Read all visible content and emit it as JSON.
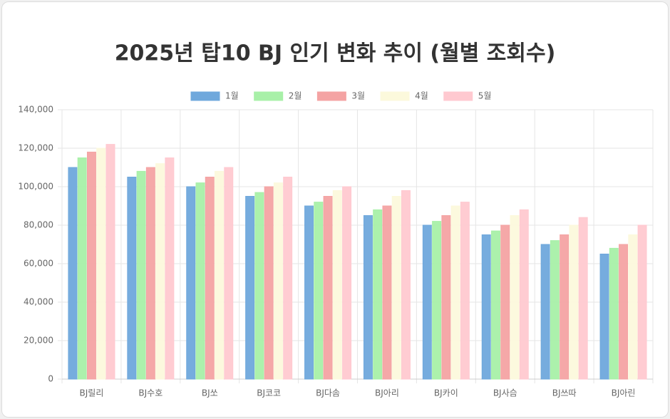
{
  "chart_data": {
    "type": "bar",
    "title": "2025년 탑10 BJ 인기 변화 추이 (월별 조회수)",
    "categories": [
      "BJ릴리",
      "BJ수호",
      "BJ쏘",
      "BJ코코",
      "BJ다솜",
      "BJ아리",
      "BJ카이",
      "BJ사슴",
      "BJ쓰따",
      "BJ아린"
    ],
    "series": [
      {
        "name": "1월",
        "color": "#6fa8dc",
        "values": [
          110000,
          105000,
          100000,
          95000,
          90000,
          85000,
          80000,
          75000,
          70000,
          65000
        ]
      },
      {
        "name": "2월",
        "color": "#a8f0a8",
        "values": [
          115000,
          108000,
          102000,
          97000,
          92000,
          88000,
          82000,
          77000,
          72000,
          68000
        ]
      },
      {
        "name": "3월",
        "color": "#f4a3a3",
        "values": [
          118000,
          110000,
          105000,
          100000,
          95000,
          90000,
          85000,
          80000,
          75000,
          70000
        ]
      },
      {
        "name": "4월",
        "color": "#fcf9dc",
        "values": [
          120000,
          112000,
          108000,
          102000,
          98000,
          95000,
          90000,
          85000,
          80000,
          75000
        ]
      },
      {
        "name": "5월",
        "color": "#ffc9d0",
        "values": [
          122000,
          115000,
          110000,
          105000,
          100000,
          98000,
          92000,
          88000,
          84000,
          80000
        ]
      }
    ],
    "ylim": [
      0,
      140000
    ],
    "yticks": [
      0,
      {
        "value": 20000,
        "label": "20,000"
      },
      {
        "value": 40000,
        "label": "40,000"
      },
      {
        "value": 60000,
        "label": "60,000"
      },
      {
        "value": 80000,
        "label": "80,000"
      },
      {
        "value": 100000,
        "label": "100,000"
      },
      {
        "value": 120000,
        "label": "120,000"
      },
      {
        "value": 140000,
        "label": "140,000"
      }
    ],
    "grid": true
  }
}
